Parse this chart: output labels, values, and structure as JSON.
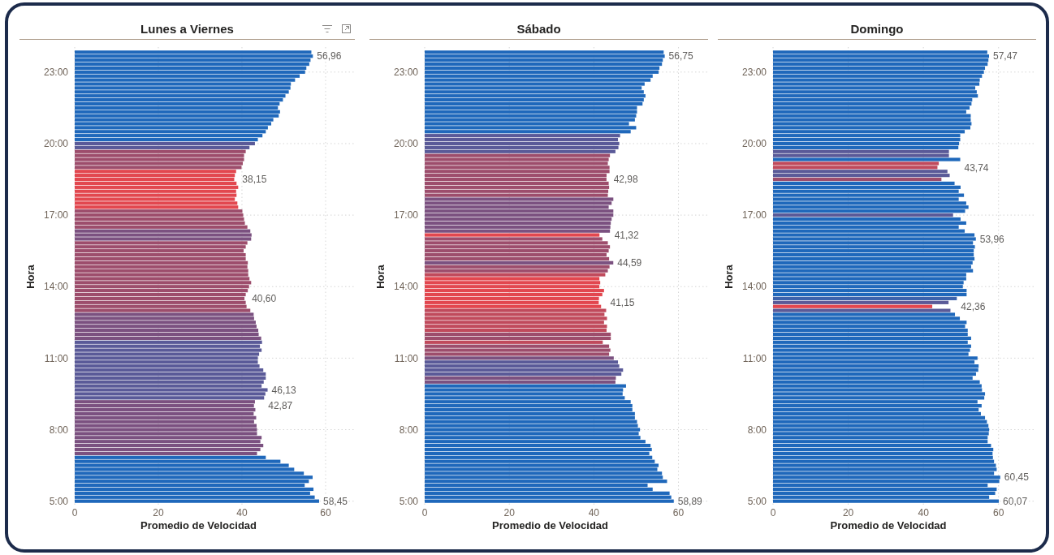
{
  "chart_data": [
    {
      "type": "bar",
      "orientation": "horizontal",
      "title": "Lunes a Viernes",
      "xlabel": "Promedio de Velocidad",
      "ylabel": "Hora",
      "xlim": [
        0,
        67
      ],
      "xticks": [
        0,
        20,
        40,
        60
      ],
      "grid": true,
      "categories": [
        null,
        null,
        null,
        null,
        null,
        "23:00",
        null,
        null,
        null,
        null,
        null,
        null,
        null,
        null,
        null,
        null,
        null,
        null,
        null,
        null,
        null,
        null,
        null,
        "20:00",
        null,
        null,
        null,
        null,
        null,
        null,
        null,
        null,
        null,
        null,
        null,
        null,
        null,
        null,
        null,
        null,
        null,
        "17:00",
        null,
        null,
        null,
        null,
        null,
        null,
        null,
        null,
        null,
        null,
        null,
        null,
        null,
        null,
        null,
        null,
        null,
        "14:00",
        null,
        null,
        null,
        null,
        null,
        null,
        null,
        null,
        null,
        null,
        null,
        null,
        null,
        null,
        null,
        null,
        null,
        "11:00",
        null,
        null,
        null,
        null,
        null,
        null,
        null,
        null,
        null,
        null,
        null,
        null,
        null,
        null,
        null,
        null,
        null,
        "8:00",
        null,
        null,
        null,
        null,
        null,
        null,
        null,
        null,
        null,
        null,
        null,
        null,
        null,
        null,
        null,
        null,
        null,
        "5:00"
      ],
      "values": [
        56.6,
        56.96,
        56.4,
        56.1,
        55.4,
        55.1,
        53.8,
        52.7,
        51.7,
        51.6,
        51.2,
        50.4,
        49.8,
        49.0,
        48.6,
        49.1,
        48.8,
        47.5,
        47.0,
        46.2,
        45.7,
        44.9,
        43.8,
        43.1,
        41.8,
        40.9,
        40.5,
        40.5,
        40.2,
        39.9,
        38.6,
        38.3,
        38.15,
        38.7,
        39.1,
        38.6,
        38.7,
        38.3,
        38.9,
        39.1,
        40.1,
        40.3,
        40.5,
        40.7,
        41.3,
        42.0,
        42.3,
        42.2,
        41.3,
        40.9,
        40.4,
        40.9,
        40.9,
        41.4,
        41.3,
        41.5,
        41.5,
        41.8,
        42.2,
        41.7,
        41.4,
        40.9,
        40.6,
        40.9,
        41.1,
        42.0,
        42.8,
        42.9,
        43.3,
        43.5,
        43.9,
        44.0,
        44.6,
        44.8,
        44.3,
        44.7,
        44.1,
        43.8,
        43.8,
        44.2,
        45.1,
        45.7,
        45.7,
        45.2,
        44.7,
        46.13,
        45.6,
        45.3,
        43.1,
        42.87,
        43.2,
        42.8,
        43.4,
        42.9,
        43.5,
        43.6,
        43.6,
        44.7,
        44.4,
        45.1,
        44.4,
        43.6,
        45.7,
        49.2,
        51.2,
        52.5,
        54.8,
        56.9,
        56.0,
        55.0,
        57.1,
        56.3,
        57.4,
        58.45
      ],
      "colors": [
        "#1f68bb",
        "#1f68bb",
        "#1f68bb",
        "#1f68bb",
        "#1f68bb",
        "#1f68bb",
        "#1f68bb",
        "#1f68bb",
        "#1f68bb",
        "#1f68bb",
        "#1f68bb",
        "#1f68bb",
        "#1f68bb",
        "#1f68bb",
        "#1f68bb",
        "#1f68bb",
        "#1f68bb",
        "#1f68bb",
        "#1f68bb",
        "#1f68bb",
        "#1f68bb",
        "#1f68bb",
        "#1f68bb",
        "#5a5a98",
        "#5a5a98",
        "#9d4d6c",
        "#9d4d6c",
        "#9d4d6c",
        "#9d4d6c",
        "#9d4d6c",
        "#e2474f",
        "#e2474f",
        "#e2474f",
        "#e2474f",
        "#e2474f",
        "#e2474f",
        "#e2474f",
        "#e2474f",
        "#e2474f",
        "#e2474f",
        "#9d4d6c",
        "#9d4d6c",
        "#9d4d6c",
        "#9d4d6c",
        "#9d4d6c",
        "#7b5180",
        "#7b5180",
        "#7b5180",
        "#9d4d6c",
        "#9d4d6c",
        "#9d4d6c",
        "#9d4d6c",
        "#9d4d6c",
        "#9d4d6c",
        "#9d4d6c",
        "#9d4d6c",
        "#9d4d6c",
        "#9d4d6c",
        "#9d4d6c",
        "#9d4d6c",
        "#9d4d6c",
        "#9d4d6c",
        "#9d4d6c",
        "#9d4d6c",
        "#9d4d6c",
        "#9d4d6c",
        "#7b5180",
        "#7b5180",
        "#7b5180",
        "#7b5180",
        "#7b5180",
        "#7b5180",
        "#7b5180",
        "#5a5a98",
        "#5a5a98",
        "#5a5a98",
        "#5a5a98",
        "#5a5a98",
        "#5a5a98",
        "#5a5a98",
        "#5a5a98",
        "#5a5a98",
        "#5a5a98",
        "#5a5a98",
        "#5a5a98",
        "#5a5a98",
        "#5a5a98",
        "#5a5a98",
        "#7b5180",
        "#7b5180",
        "#7b5180",
        "#7b5180",
        "#7b5180",
        "#7b5180",
        "#7b5180",
        "#7b5180",
        "#7b5180",
        "#7b5180",
        "#7b5180",
        "#7b5180",
        "#7b5180",
        "#7b5180",
        "#1f68bb",
        "#1f68bb",
        "#1f68bb",
        "#1f68bb",
        "#1f68bb",
        "#1f68bb",
        "#1f68bb",
        "#1f68bb",
        "#1f68bb",
        "#1f68bb",
        "#1f68bb",
        "#1f68bb"
      ],
      "value_labels": [
        null,
        "56,96",
        null,
        null,
        null,
        null,
        null,
        null,
        null,
        null,
        null,
        null,
        null,
        null,
        null,
        null,
        null,
        null,
        null,
        null,
        null,
        null,
        null,
        null,
        null,
        null,
        null,
        null,
        null,
        null,
        null,
        null,
        "38,15",
        null,
        null,
        null,
        null,
        null,
        null,
        null,
        null,
        null,
        null,
        null,
        null,
        null,
        null,
        null,
        null,
        null,
        null,
        null,
        null,
        null,
        null,
        null,
        null,
        null,
        null,
        null,
        null,
        null,
        "40,60",
        null,
        null,
        null,
        null,
        null,
        null,
        null,
        null,
        null,
        null,
        null,
        null,
        null,
        null,
        null,
        null,
        null,
        null,
        null,
        null,
        null,
        null,
        "46,13",
        null,
        null,
        null,
        "42,87",
        null,
        null,
        null,
        null,
        null,
        null,
        null,
        null,
        null,
        null,
        null,
        null,
        null,
        null,
        null,
        null,
        null,
        null,
        null,
        null,
        null,
        null,
        null,
        "58,45"
      ]
    },
    {
      "type": "bar",
      "orientation": "horizontal",
      "title": "Sábado",
      "xlabel": "Promedio de Velocidad",
      "ylabel": "Hora",
      "xlim": [
        0,
        67
      ],
      "xticks": [
        0,
        20,
        40,
        60
      ],
      "grid": true,
      "categories": [
        null,
        null,
        null,
        null,
        null,
        "23:00",
        null,
        null,
        null,
        null,
        null,
        null,
        null,
        null,
        null,
        null,
        null,
        null,
        null,
        null,
        null,
        null,
        null,
        "20:00",
        null,
        null,
        null,
        null,
        null,
        null,
        null,
        null,
        null,
        null,
        null,
        null,
        null,
        null,
        null,
        null,
        null,
        "17:00",
        null,
        null,
        null,
        null,
        null,
        null,
        null,
        null,
        null,
        null,
        null,
        null,
        null,
        null,
        null,
        null,
        null,
        "14:00",
        null,
        null,
        null,
        null,
        null,
        null,
        null,
        null,
        null,
        null,
        null,
        null,
        null,
        null,
        null,
        null,
        null,
        "11:00",
        null,
        null,
        null,
        null,
        null,
        null,
        null,
        null,
        null,
        null,
        null,
        null,
        null,
        null,
        null,
        null,
        null,
        "8:00",
        null,
        null,
        null,
        null,
        null,
        null,
        null,
        null,
        null,
        null,
        null,
        null,
        null,
        null,
        null,
        null,
        null,
        "5:00"
      ],
      "values": [
        56.5,
        56.75,
        56.3,
        56.1,
        55.5,
        55.3,
        53.9,
        53.4,
        52.0,
        51.3,
        51.8,
        52.2,
        51.8,
        51.5,
        50.2,
        50.2,
        50.0,
        49.7,
        48.3,
        50.0,
        48.7,
        46.2,
        45.7,
        46.0,
        45.8,
        45.1,
        43.8,
        43.5,
        43.3,
        43.7,
        43.7,
        43.0,
        42.98,
        43.5,
        43.6,
        43.4,
        43.3,
        44.6,
        44.2,
        43.5,
        44.6,
        44.6,
        44.2,
        44.0,
        43.9,
        43.8,
        41.32,
        42.0,
        43.3,
        43.8,
        43.5,
        43.0,
        43.6,
        44.59,
        43.7,
        43.3,
        42.7,
        41.3,
        41.5,
        41.3,
        42.4,
        42.0,
        41.2,
        41.15,
        41.7,
        42.9,
        42.5,
        43.1,
        42.4,
        43.1,
        43.0,
        44.0,
        44.0,
        42.1,
        43.6,
        43.9,
        43.6,
        44.7,
        45.7,
        46.0,
        46.9,
        46.5,
        45.2,
        45.1,
        47.6,
        46.9,
        46.8,
        47.3,
        48.7,
        49.1,
        49.1,
        49.7,
        49.7,
        50.2,
        50.4,
        50.9,
        50.6,
        51.0,
        52.2,
        53.4,
        53.7,
        53.1,
        53.8,
        54.4,
        55.3,
        55.0,
        56.1,
        56.3,
        57.3,
        52.7,
        53.9,
        57.9,
        58.3,
        58.89
      ],
      "colors": [
        "#1f68bb",
        "#1f68bb",
        "#1f68bb",
        "#1f68bb",
        "#1f68bb",
        "#1f68bb",
        "#1f68bb",
        "#1f68bb",
        "#1f68bb",
        "#1f68bb",
        "#1f68bb",
        "#1f68bb",
        "#1f68bb",
        "#1f68bb",
        "#1f68bb",
        "#1f68bb",
        "#1f68bb",
        "#1f68bb",
        "#1f68bb",
        "#1f68bb",
        "#1f68bb",
        "#5a5a98",
        "#5a5a98",
        "#5a5a98",
        "#5a5a98",
        "#5a5a98",
        "#9d4d6c",
        "#9d4d6c",
        "#9d4d6c",
        "#9d4d6c",
        "#9d4d6c",
        "#9d4d6c",
        "#9d4d6c",
        "#9d4d6c",
        "#9d4d6c",
        "#9d4d6c",
        "#9d4d6c",
        "#7b5180",
        "#7b5180",
        "#7b5180",
        "#7b5180",
        "#7b5180",
        "#7b5180",
        "#7b5180",
        "#7b5180",
        "#7b5180",
        "#e2474f",
        "#9d4d6c",
        "#9d4d6c",
        "#9d4d6c",
        "#9d4d6c",
        "#9d4d6c",
        "#9d4d6c",
        "#7b5180",
        "#9d4d6c",
        "#9d4d6c",
        "#c04a5c",
        "#e2474f",
        "#e2474f",
        "#e2474f",
        "#e2474f",
        "#e2474f",
        "#e2474f",
        "#e2474f",
        "#e2474f",
        "#c04a5c",
        "#c04a5c",
        "#c04a5c",
        "#c04a5c",
        "#c04a5c",
        "#c04a5c",
        "#9d4d6c",
        "#9d4d6c",
        "#c04a5c",
        "#9d4d6c",
        "#9d4d6c",
        "#9d4d6c",
        "#7b5180",
        "#5a5a98",
        "#5a5a98",
        "#5a5a98",
        "#5a5a98",
        "#7b5180",
        "#7b5180",
        "#1f68bb",
        "#1f68bb",
        "#1f68bb",
        "#1f68bb",
        "#1f68bb",
        "#1f68bb",
        "#1f68bb",
        "#1f68bb",
        "#1f68bb",
        "#1f68bb",
        "#1f68bb",
        "#1f68bb",
        "#1f68bb",
        "#1f68bb",
        "#1f68bb",
        "#1f68bb",
        "#1f68bb",
        "#1f68bb",
        "#1f68bb",
        "#1f68bb",
        "#1f68bb",
        "#1f68bb",
        "#1f68bb",
        "#1f68bb",
        "#1f68bb",
        "#1f68bb",
        "#1f68bb",
        "#1f68bb",
        "#1f68bb",
        "#1f68bb"
      ],
      "value_labels": [
        null,
        "56,75",
        null,
        null,
        null,
        null,
        null,
        null,
        null,
        null,
        null,
        null,
        null,
        null,
        null,
        null,
        null,
        null,
        null,
        null,
        null,
        null,
        null,
        null,
        null,
        null,
        null,
        null,
        null,
        null,
        null,
        null,
        "42,98",
        null,
        null,
        null,
        null,
        null,
        null,
        null,
        null,
        null,
        null,
        null,
        null,
        null,
        "41,32",
        null,
        null,
        null,
        null,
        null,
        null,
        "44,59",
        null,
        null,
        null,
        null,
        null,
        null,
        null,
        null,
        null,
        "41,15",
        null,
        null,
        null,
        null,
        null,
        null,
        null,
        null,
        null,
        null,
        null,
        null,
        null,
        null,
        null,
        null,
        null,
        null,
        null,
        null,
        null,
        null,
        null,
        null,
        null,
        null,
        null,
        null,
        null,
        null,
        null,
        null,
        null,
        null,
        null,
        null,
        null,
        null,
        null,
        null,
        null,
        null,
        null,
        null,
        null,
        null,
        null,
        null,
        null,
        "58,89"
      ]
    },
    {
      "type": "bar",
      "orientation": "horizontal",
      "title": "Domingo",
      "xlabel": "Promedio de Velocidad",
      "ylabel": "Hora",
      "xlim": [
        0,
        70
      ],
      "xticks": [
        0,
        20,
        40,
        60
      ],
      "grid": true,
      "categories": [
        null,
        null,
        null,
        null,
        null,
        "23:00",
        null,
        null,
        null,
        null,
        null,
        null,
        null,
        null,
        null,
        null,
        null,
        null,
        null,
        null,
        null,
        null,
        null,
        "20:00",
        null,
        null,
        null,
        null,
        null,
        null,
        null,
        null,
        null,
        null,
        null,
        null,
        null,
        null,
        null,
        null,
        null,
        "17:00",
        null,
        null,
        null,
        null,
        null,
        null,
        null,
        null,
        null,
        null,
        null,
        null,
        null,
        null,
        null,
        null,
        null,
        "14:00",
        null,
        null,
        null,
        null,
        null,
        null,
        null,
        null,
        null,
        null,
        null,
        null,
        null,
        null,
        null,
        null,
        null,
        "11:00",
        null,
        null,
        null,
        null,
        null,
        null,
        null,
        null,
        null,
        null,
        null,
        null,
        null,
        null,
        null,
        null,
        null,
        "8:00",
        null,
        null,
        null,
        null,
        null,
        null,
        null,
        null,
        null,
        null,
        null,
        null,
        null,
        null,
        null,
        null,
        null,
        "5:00"
      ],
      "values": [
        57.0,
        57.47,
        57.3,
        57.1,
        56.4,
        56.1,
        55.6,
        55.0,
        54.9,
        53.8,
        54.2,
        54.5,
        53.0,
        52.8,
        52.3,
        51.4,
        52.6,
        52.6,
        52.8,
        52.5,
        51.0,
        49.8,
        49.8,
        49.5,
        49.3,
        46.8,
        46.8,
        49.8,
        44.1,
        43.74,
        46.4,
        47.0,
        44.8,
        48.3,
        49.9,
        49.4,
        50.8,
        49.4,
        51.4,
        52.0,
        51.1,
        47.9,
        49.9,
        51.4,
        49.4,
        51.0,
        53.6,
        53.96,
        53.2,
        53.7,
        53.4,
        53.4,
        53.6,
        53.1,
        52.7,
        53.2,
        51.4,
        51.4,
        50.7,
        50.5,
        51.5,
        51.5,
        48.9,
        46.7,
        42.36,
        47.2,
        48.4,
        49.7,
        51.5,
        51.1,
        51.8,
        51.8,
        52.7,
        51.8,
        52.7,
        52.4,
        52.0,
        54.4,
        53.6,
        54.7,
        54.6,
        54.0,
        53.1,
        55.0,
        55.5,
        55.6,
        56.4,
        56.2,
        54.4,
        55.5,
        54.7,
        55.3,
        56.4,
        56.9,
        57.3,
        57.5,
        57.4,
        57.1,
        57.1,
        58.0,
        58.6,
        58.4,
        58.5,
        58.8,
        59.3,
        59.5,
        58.8,
        60.45,
        60.2,
        57.1,
        59.5,
        59.1,
        57.5,
        60.07
      ],
      "colors": [
        "#1f68bb",
        "#1f68bb",
        "#1f68bb",
        "#1f68bb",
        "#1f68bb",
        "#1f68bb",
        "#1f68bb",
        "#1f68bb",
        "#1f68bb",
        "#1f68bb",
        "#1f68bb",
        "#1f68bb",
        "#1f68bb",
        "#1f68bb",
        "#1f68bb",
        "#1f68bb",
        "#1f68bb",
        "#1f68bb",
        "#1f68bb",
        "#1f68bb",
        "#1f68bb",
        "#1f68bb",
        "#1f68bb",
        "#1f68bb",
        "#1f68bb",
        "#5a5a98",
        "#5a5a98",
        "#1f68bb",
        "#c04a5c",
        "#c04a5c",
        "#5a5a98",
        "#5a5a98",
        "#9d4d6c",
        "#1f68bb",
        "#1f68bb",
        "#1f68bb",
        "#1f68bb",
        "#1f68bb",
        "#1f68bb",
        "#1f68bb",
        "#1f68bb",
        "#5a5a98",
        "#1f68bb",
        "#1f68bb",
        "#1f68bb",
        "#1f68bb",
        "#1f68bb",
        "#1f68bb",
        "#1f68bb",
        "#1f68bb",
        "#1f68bb",
        "#1f68bb",
        "#1f68bb",
        "#1f68bb",
        "#1f68bb",
        "#1f68bb",
        "#1f68bb",
        "#1f68bb",
        "#1f68bb",
        "#1f68bb",
        "#1f68bb",
        "#1f68bb",
        "#3c62ab",
        "#5a5a98",
        "#e2474f",
        "#5a5a98",
        "#1f68bb",
        "#1f68bb",
        "#1f68bb",
        "#1f68bb",
        "#1f68bb",
        "#1f68bb",
        "#1f68bb",
        "#1f68bb",
        "#1f68bb",
        "#1f68bb",
        "#1f68bb",
        "#1f68bb",
        "#1f68bb",
        "#1f68bb",
        "#1f68bb",
        "#1f68bb",
        "#1f68bb",
        "#1f68bb",
        "#1f68bb",
        "#1f68bb",
        "#1f68bb",
        "#1f68bb",
        "#1f68bb",
        "#1f68bb",
        "#1f68bb",
        "#1f68bb",
        "#1f68bb",
        "#1f68bb",
        "#1f68bb",
        "#1f68bb",
        "#1f68bb",
        "#1f68bb",
        "#1f68bb",
        "#1f68bb",
        "#1f68bb",
        "#1f68bb",
        "#1f68bb",
        "#1f68bb",
        "#1f68bb",
        "#1f68bb",
        "#1f68bb",
        "#1f68bb",
        "#1f68bb",
        "#1f68bb",
        "#1f68bb",
        "#1f68bb",
        "#1f68bb",
        "#1f68bb"
      ],
      "value_labels": [
        null,
        "57,47",
        null,
        null,
        null,
        null,
        null,
        null,
        null,
        null,
        null,
        null,
        null,
        null,
        null,
        null,
        null,
        null,
        null,
        null,
        null,
        null,
        null,
        null,
        null,
        null,
        null,
        null,
        null,
        "43,74",
        null,
        null,
        null,
        null,
        null,
        null,
        null,
        null,
        null,
        null,
        null,
        null,
        null,
        null,
        null,
        null,
        null,
        "53,96",
        null,
        null,
        null,
        null,
        null,
        null,
        null,
        null,
        null,
        null,
        null,
        null,
        null,
        null,
        null,
        null,
        "42,36",
        null,
        null,
        null,
        null,
        null,
        null,
        null,
        null,
        null,
        null,
        null,
        null,
        null,
        null,
        null,
        null,
        null,
        null,
        null,
        null,
        null,
        null,
        null,
        null,
        null,
        null,
        null,
        null,
        null,
        null,
        null,
        null,
        null,
        null,
        null,
        null,
        null,
        null,
        null,
        null,
        null,
        null,
        "60,45",
        null,
        null,
        null,
        null,
        null,
        "60,07"
      ]
    }
  ]
}
